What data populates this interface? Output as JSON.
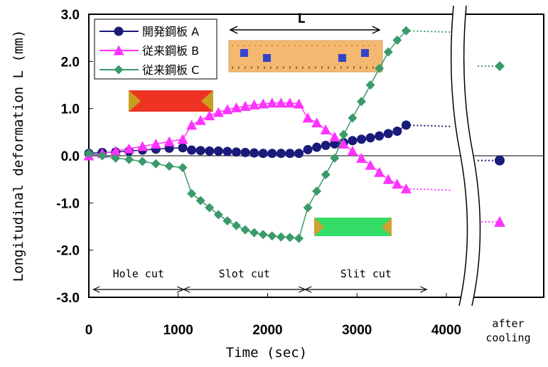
{
  "chart_data": {
    "type": "line",
    "x_label": "Time  (sec)",
    "y_label": "Longitudinal deformation  L (mm)",
    "after_label": [
      "after",
      "cooling"
    ],
    "inset_label": "L",
    "x": [
      0,
      150,
      300,
      450,
      600,
      750,
      900,
      1050,
      1150,
      1250,
      1350,
      1450,
      1550,
      1650,
      1750,
      1850,
      1950,
      2050,
      2150,
      2250,
      2350,
      2450,
      2550,
      2650,
      2750,
      2850,
      2950,
      3050,
      3150,
      3250,
      3350,
      3450,
      3550
    ],
    "series": [
      {
        "name": "開発鋼板 A",
        "color": "#1a1a7a",
        "marker": "circle",
        "after_cooling": -0.1,
        "values": [
          0.05,
          0.07,
          0.08,
          0.1,
          0.12,
          0.14,
          0.16,
          0.17,
          0.12,
          0.11,
          0.1,
          0.1,
          0.09,
          0.08,
          0.07,
          0.06,
          0.05,
          0.05,
          0.05,
          0.05,
          0.05,
          0.13,
          0.18,
          0.22,
          0.25,
          0.28,
          0.32,
          0.35,
          0.38,
          0.42,
          0.47,
          0.52,
          0.65
        ]
      },
      {
        "name": "従来鋼板 B",
        "color": "#ff33ff",
        "marker": "triangle",
        "after_cooling": -1.4,
        "values": [
          0,
          0.05,
          0.1,
          0.15,
          0.2,
          0.25,
          0.3,
          0.35,
          0.65,
          0.75,
          0.85,
          0.92,
          0.98,
          1.02,
          1.05,
          1.08,
          1.1,
          1.12,
          1.12,
          1.12,
          1.1,
          0.8,
          0.7,
          0.55,
          0.4,
          0.25,
          0.1,
          -0.05,
          -0.2,
          -0.35,
          -0.5,
          -0.6,
          -0.7
        ]
      },
      {
        "name": "従来鋼板 C",
        "color": "#3a9a6a",
        "marker": "diamond",
        "after_cooling": 1.9,
        "values": [
          0.05,
          0,
          -0.05,
          -0.08,
          -0.12,
          -0.17,
          -0.22,
          -0.25,
          -0.8,
          -0.95,
          -1.1,
          -1.25,
          -1.38,
          -1.48,
          -1.57,
          -1.63,
          -1.67,
          -1.7,
          -1.72,
          -1.73,
          -1.75,
          -1.1,
          -0.75,
          -0.4,
          -0.05,
          0.45,
          0.8,
          1.15,
          1.5,
          1.85,
          2.2,
          2.45,
          2.65
        ]
      }
    ],
    "phases": [
      {
        "label": "Hole cut",
        "start": 50,
        "end": 1060
      },
      {
        "label": "Slot cut",
        "start": 1060,
        "end": 2420
      },
      {
        "label": "Slit cut",
        "start": 2420,
        "end": 3780
      }
    ],
    "xlim": [
      0,
      4000
    ],
    "xticks": [
      0,
      1000,
      2000,
      3000,
      4000
    ],
    "ylim": [
      -3,
      3
    ],
    "yticks": [
      {
        "value": -3,
        "label": "-3.0"
      },
      {
        "value": -2,
        "label": "-2.0"
      },
      {
        "value": -1,
        "label": "-1.0"
      },
      {
        "value": 0,
        "label": "0.0"
      },
      {
        "value": 1,
        "label": "1.0"
      },
      {
        "value": 2,
        "label": "2.0"
      },
      {
        "value": 3,
        "label": "3.0"
      }
    ]
  }
}
